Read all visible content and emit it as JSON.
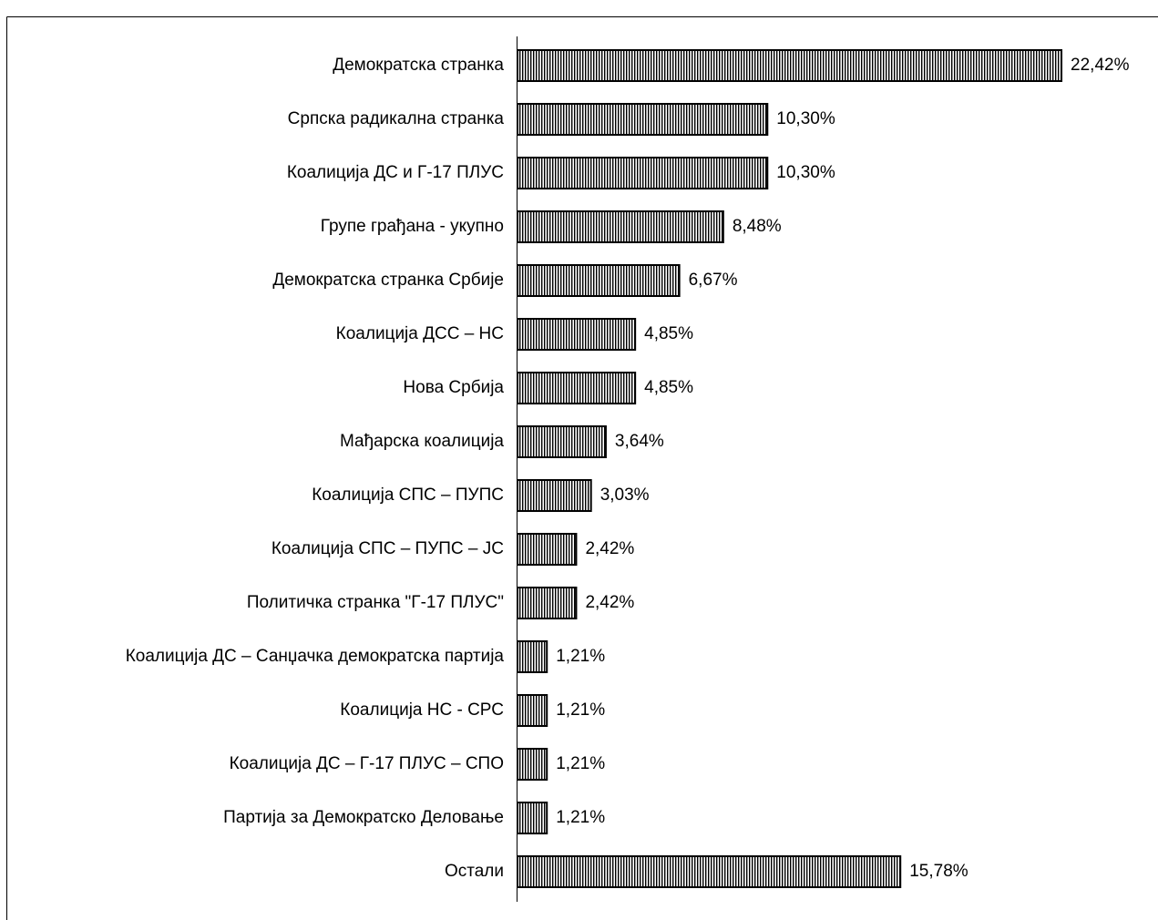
{
  "chart_data": {
    "type": "bar",
    "orientation": "horizontal",
    "categories": [
      "Демократска странка",
      "Српска радикална странка",
      "Коалиција ДС и Г-17 ПЛУС",
      "Групе грађана - укупно",
      "Демократска странка Србије",
      "Коалиција ДСС – НС",
      "Нова Србија",
      "Мађарска коалиција",
      "Коалиција СПС – ПУПС",
      "Коалиција СПС – ПУПС – ЈС",
      "Политичка странка \"Г-17 ПЛУС\"",
      "Коалиција ДС – Санџачка демократска партија",
      "Коалиција НС - СРС",
      "Коалиција ДС – Г-17 ПЛУС – СПО",
      "Партија за Демократско Деловање",
      "Остали"
    ],
    "values": [
      22.42,
      10.3,
      10.3,
      8.48,
      6.67,
      4.85,
      4.85,
      3.64,
      3.03,
      2.42,
      2.42,
      1.21,
      1.21,
      1.21,
      1.21,
      15.78
    ],
    "value_labels": [
      "22,42%",
      "10,30%",
      "10,30%",
      "8,48%",
      "6,67%",
      "4,85%",
      "4,85%",
      "3,64%",
      "3,03%",
      "2,42%",
      "2,42%",
      "1,21%",
      "1,21%",
      "1,21%",
      "1,21%",
      "15,78%"
    ],
    "color": "#000000"
  }
}
